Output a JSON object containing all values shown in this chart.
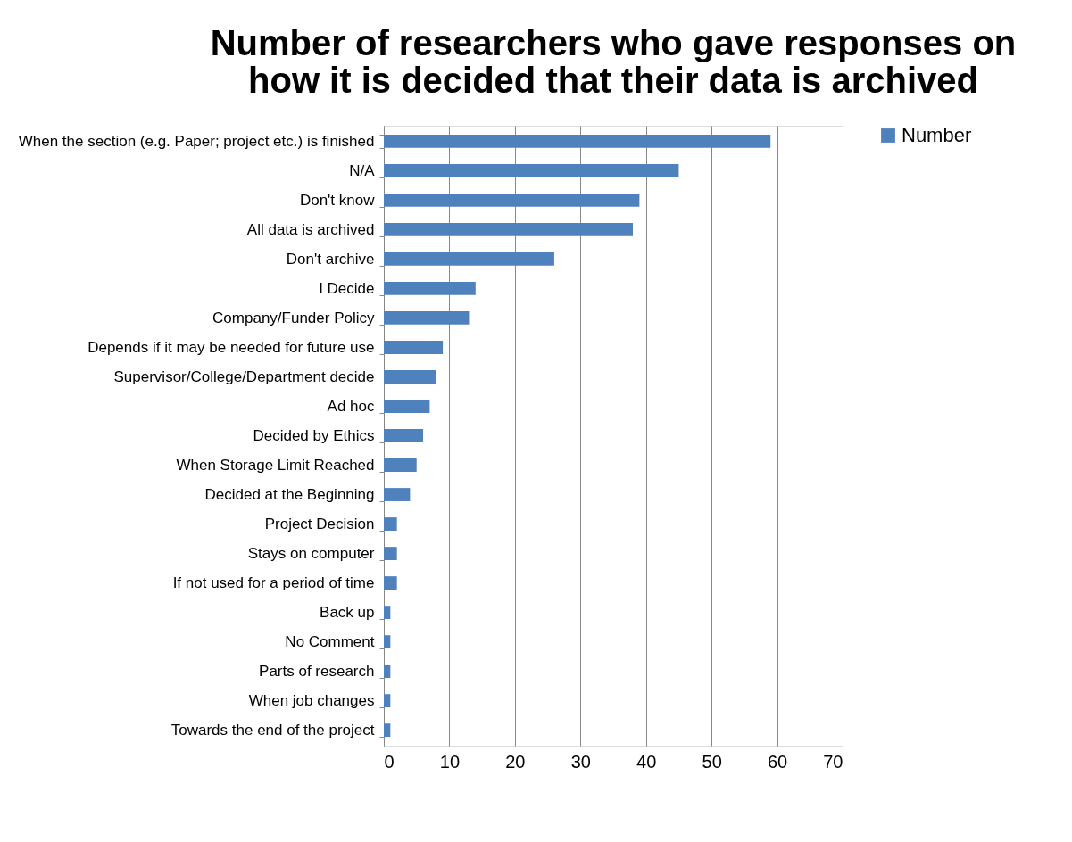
{
  "chart_data": {
    "type": "bar",
    "orientation": "horizontal",
    "title": [
      "Number of researchers who gave responses on",
      "how it is decided that their data is archived"
    ],
    "categories": [
      "When the section (e.g. Paper; project etc.) is finished",
      "N/A",
      "Don't know",
      "All data is archived",
      "Don't archive",
      "I Decide",
      "Company/Funder Policy",
      "Depends if it may be needed for future use",
      "Supervisor/College/Department decide",
      "Ad hoc",
      "Decided by Ethics",
      "When Storage Limit Reached",
      "Decided at the Beginning",
      "Project Decision",
      "Stays on computer",
      "If not used for a period of time",
      "Back up",
      "No Comment",
      "Parts of research",
      "When job changes",
      "Towards the end of the project"
    ],
    "series": [
      {
        "name": "Number",
        "color": "#4f81bd",
        "values": [
          59,
          45,
          39,
          38,
          26,
          14,
          13,
          9,
          8,
          7,
          6,
          5,
          4,
          2,
          2,
          2,
          1,
          1,
          1,
          1,
          1
        ]
      }
    ],
    "xlim": [
      0,
      70
    ],
    "xticks": [
      0,
      10,
      20,
      30,
      40,
      50,
      60,
      70
    ],
    "grid": "x",
    "legend": "right"
  }
}
